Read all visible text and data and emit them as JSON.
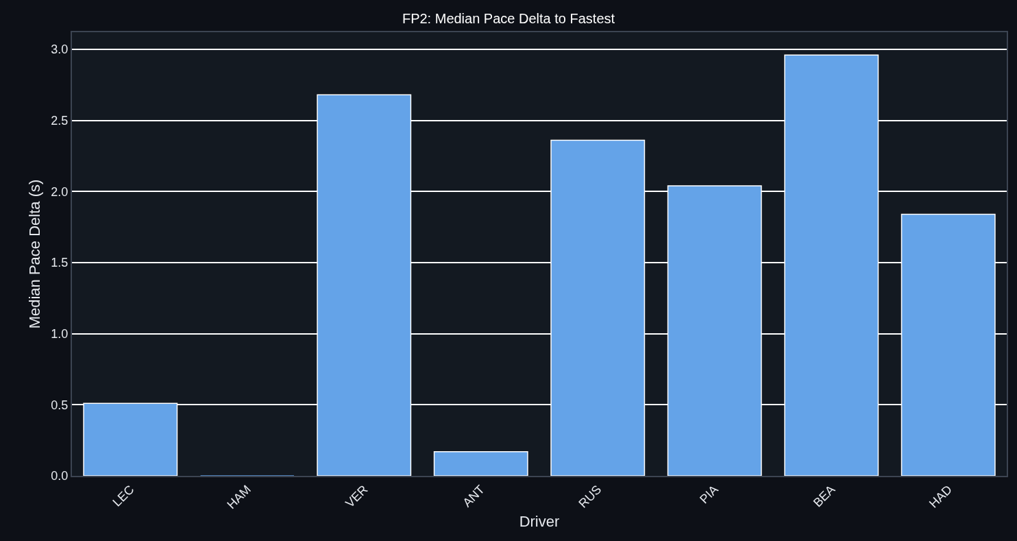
{
  "chart_data": {
    "type": "bar",
    "title": "FP2: Median Pace Delta to Fastest",
    "xlabel": "Driver",
    "ylabel": "Median Pace Delta (s)",
    "categories": [
      "LEC",
      "HAM",
      "VER",
      "ANT",
      "RUS",
      "PIA",
      "BEA",
      "HAD"
    ],
    "values": [
      0.51,
      0.0,
      2.68,
      0.17,
      2.36,
      2.04,
      2.96,
      1.84
    ],
    "color": "#64a3e8",
    "ylim": [
      0,
      3.12
    ],
    "yticks": [
      {
        "value": 0,
        "label": "0.0"
      },
      0.5,
      {
        "value": 1,
        "label": "1.0"
      },
      1.5,
      {
        "value": 2,
        "label": "2.0"
      },
      2.5,
      {
        "value": 3,
        "label": "3.0"
      }
    ],
    "grid": "y"
  }
}
